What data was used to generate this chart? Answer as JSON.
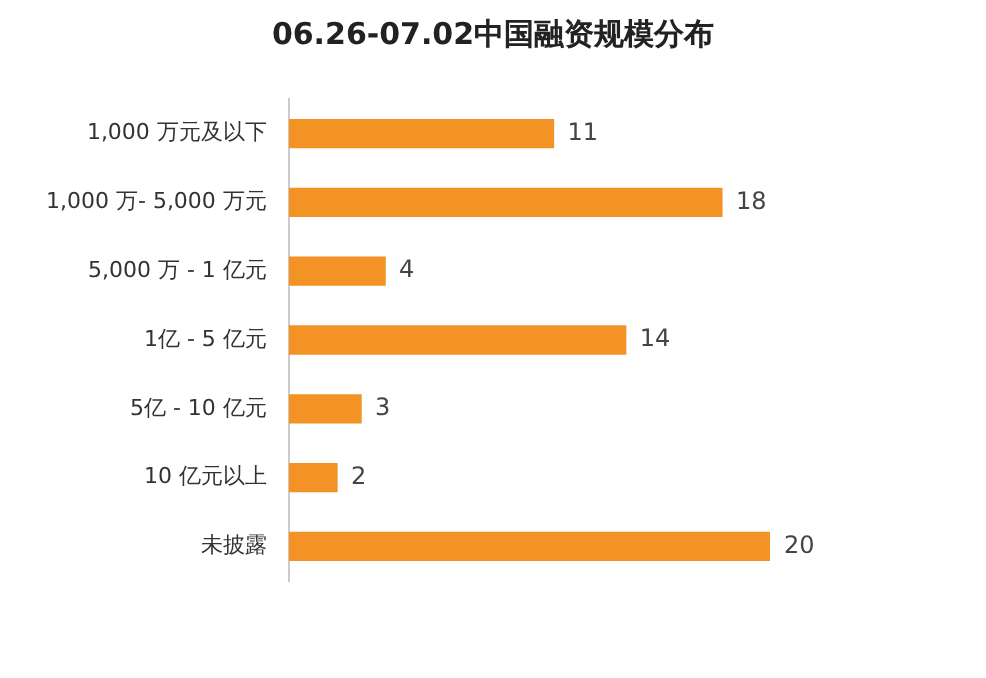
{
  "chart_data": {
    "type": "bar",
    "orientation": "horizontal",
    "title": "06.26-07.02中国融资规模分布",
    "categories": [
      "1,000 万元及以下",
      "1,000 万- 5,000 万元",
      "5,000 万 - 1 亿元",
      "1亿 - 5 亿元",
      "5亿 - 10 亿元",
      "10 亿元以上",
      "未披露"
    ],
    "values": [
      11,
      18,
      4,
      14,
      3,
      2,
      20
    ],
    "color": "#f39325",
    "data_labels": true,
    "legend": false
  }
}
